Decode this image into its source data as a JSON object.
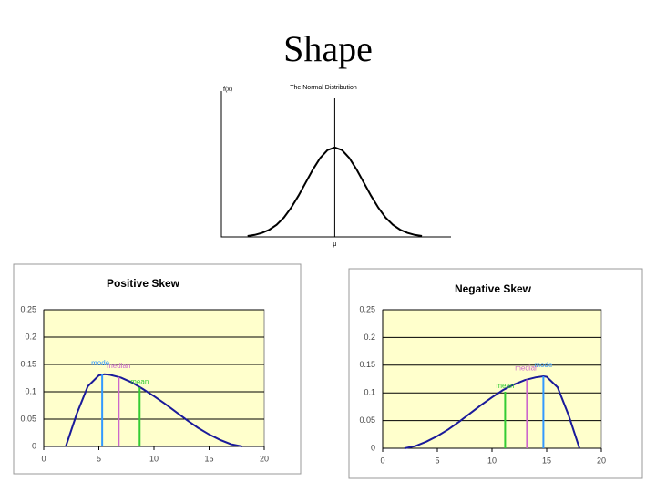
{
  "slide": {
    "title": "Shape"
  },
  "chart_data": [
    {
      "type": "line",
      "title": "The Normal Distribution",
      "y_label": "f(x)",
      "x": [
        -3,
        -2.75,
        -2.5,
        -2.25,
        -2,
        -1.75,
        -1.5,
        -1.25,
        -1,
        -0.75,
        -0.5,
        -0.25,
        0,
        0.25,
        0.5,
        0.75,
        1,
        1.25,
        1.5,
        1.75,
        2,
        2.25,
        2.5,
        2.75,
        3
      ],
      "values": [
        0.004,
        0.009,
        0.018,
        0.032,
        0.054,
        0.086,
        0.13,
        0.183,
        0.242,
        0.301,
        0.352,
        0.387,
        0.399,
        0.387,
        0.352,
        0.301,
        0.242,
        0.183,
        0.13,
        0.086,
        0.054,
        0.032,
        0.018,
        0.009,
        0.004
      ],
      "color": "#000000",
      "xlim": [
        -3.9,
        4
      ],
      "ylim": [
        0,
        0.65
      ],
      "grid": false,
      "annotations": [
        {
          "x": 0,
          "label": "μ"
        }
      ]
    },
    {
      "type": "line",
      "title": "Positive Skew",
      "x": [
        2,
        3,
        4,
        5,
        5.5,
        6,
        7,
        8,
        9,
        10,
        11,
        12,
        13,
        14,
        15,
        16,
        17,
        18
      ],
      "values": [
        0,
        0.06,
        0.11,
        0.13,
        0.132,
        0.131,
        0.126,
        0.117,
        0.105,
        0.092,
        0.078,
        0.063,
        0.048,
        0.034,
        0.022,
        0.012,
        0.004,
        0
      ],
      "color": "#1a1a9a",
      "background": "#ffffcc",
      "xlim": [
        0,
        20
      ],
      "ylim": [
        0,
        0.25
      ],
      "xticks": [
        0,
        5,
        10,
        15,
        20
      ],
      "yticks": [
        0,
        0.05,
        0.1,
        0.15,
        0.2,
        0.25
      ],
      "grid": true,
      "markers": [
        {
          "name": "mode",
          "x": 5.3,
          "y": 0.132,
          "color": "#3399ff"
        },
        {
          "name": "median",
          "x": 6.8,
          "y": 0.127,
          "color": "#cc66cc"
        },
        {
          "name": "mean",
          "x": 8.7,
          "y": 0.108,
          "color": "#33cc33"
        }
      ]
    },
    {
      "type": "line",
      "title": "Negative Skew",
      "x": [
        2,
        3,
        4,
        5,
        6,
        7,
        8,
        9,
        10,
        11,
        12,
        13,
        14,
        14.7,
        15,
        16,
        17,
        18
      ],
      "values": [
        0,
        0.004,
        0.012,
        0.022,
        0.034,
        0.048,
        0.063,
        0.078,
        0.092,
        0.105,
        0.115,
        0.123,
        0.128,
        0.13,
        0.129,
        0.11,
        0.06,
        0
      ],
      "color": "#1a1a9a",
      "background": "#ffffcc",
      "xlim": [
        0,
        20
      ],
      "ylim": [
        0,
        0.25
      ],
      "xticks": [
        0,
        5,
        10,
        15,
        20
      ],
      "yticks": [
        0,
        0.05,
        0.1,
        0.15,
        0.2,
        0.25
      ],
      "grid": true,
      "markers": [
        {
          "name": "mean",
          "x": 11.2,
          "y": 0.102,
          "color": "#33cc33"
        },
        {
          "name": "median",
          "x": 13.2,
          "y": 0.124,
          "color": "#cc66cc"
        },
        {
          "name": "mode",
          "x": 14.7,
          "y": 0.13,
          "color": "#3399ff"
        }
      ]
    }
  ]
}
